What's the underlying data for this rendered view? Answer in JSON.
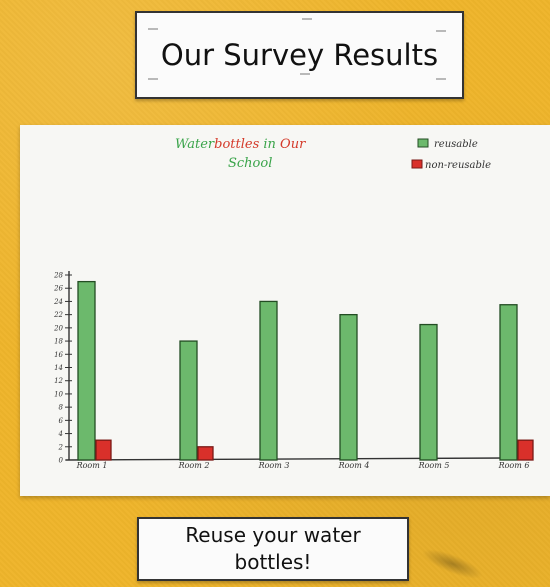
{
  "signs": {
    "top": "Our Survey Results",
    "bottom": "Reuse your water bottles!"
  },
  "chart_data": {
    "type": "bar",
    "title_parts": [
      {
        "text": "Water",
        "color": "#3aa44a"
      },
      {
        "text": "bottles",
        "color": "#d43a2a"
      },
      {
        "text": " in ",
        "color": "#3aa44a"
      },
      {
        "text": "Our",
        "color": "#d43a2a"
      }
    ],
    "title_line2": "School",
    "categories": [
      "Room 1",
      "Room 2",
      "Room 3",
      "Room 4",
      "Room 5",
      "Room 6"
    ],
    "series": [
      {
        "name": "reusable",
        "color": "#6cb96c",
        "values": [
          27,
          18,
          24,
          22,
          20.5,
          23.5
        ]
      },
      {
        "name": "non-reusable",
        "color": "#d9302a",
        "values": [
          3,
          2,
          0,
          0,
          0,
          3
        ]
      }
    ],
    "yticks": [
      0,
      2,
      4,
      6,
      8,
      10,
      12,
      14,
      16,
      18,
      20,
      22,
      24,
      26,
      28
    ],
    "ylim": [
      0,
      28
    ],
    "legend_position": "top-right",
    "grid": false
  }
}
